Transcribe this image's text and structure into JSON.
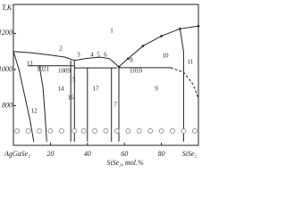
{
  "chart_data": {
    "type": "line",
    "y_label": "T,K",
    "x_label": "SiSe₂, mol.%",
    "xlim": [
      0,
      100
    ],
    "ylim": [
      580,
      1360
    ],
    "xticks": [
      {
        "value": 0,
        "label": "AgGaSe₂"
      },
      20,
      40,
      60,
      80,
      {
        "value": 100,
        "label": "SiSe₂"
      }
    ],
    "yticks": [
      800,
      1000,
      1200
    ],
    "color": "#222222",
    "series": [
      {
        "x": [
          0,
          10,
          20,
          28,
          33
        ],
        "values": [
          1100,
          1092,
          1080,
          1068,
          1050
        ],
        "color": "#222222"
      },
      {
        "x": [
          33,
          40,
          47,
          52,
          57
        ],
        "values": [
          1050,
          1062,
          1068,
          1060,
          1015
        ],
        "color": "#222222"
      },
      {
        "x": [
          57,
          62,
          70,
          80,
          90,
          100
        ],
        "values": [
          1015,
          1060,
          1130,
          1185,
          1225,
          1240
        ],
        "color": "#222222",
        "marker": "dot"
      },
      {
        "x": [
          8,
          33
        ],
        "values": [
          1021,
          1021
        ],
        "color": "#222222"
      },
      {
        "x": [
          33,
          56
        ],
        "values": [
          1009,
          1009
        ],
        "color": "#222222"
      },
      {
        "x": [
          57,
          85
        ],
        "values": [
          1010,
          1010
        ],
        "color": "#222222"
      },
      {
        "x": [
          85,
          92,
          97,
          100
        ],
        "values": [
          1010,
          985,
          920,
          840
        ],
        "color": "#222222",
        "dash": true
      },
      {
        "x": [
          0,
          3,
          6,
          9,
          11
        ],
        "values": [
          1100,
          1000,
          860,
          720,
          600
        ],
        "color": "#222222"
      },
      {
        "x": [
          14,
          16,
          17,
          18
        ],
        "values": [
          1021,
          900,
          760,
          600
        ],
        "color": "#222222"
      },
      {
        "x": [
          31,
          31
        ],
        "values": [
          1050,
          600
        ],
        "color": "#222222"
      },
      {
        "x": [
          33,
          33
        ],
        "values": [
          1050,
          600
        ],
        "color": "#222222"
      },
      {
        "x": [
          40,
          40
        ],
        "values": [
          1009,
          600
        ],
        "color": "#222222"
      },
      {
        "x": [
          53,
          53
        ],
        "values": [
          1009,
          600
        ],
        "color": "#222222"
      },
      {
        "x": [
          57,
          57
        ],
        "values": [
          1015,
          600
        ],
        "color": "#222222"
      },
      {
        "x": [
          90,
          92,
          92,
          92
        ],
        "values": [
          1230,
          1100,
          900,
          600
        ],
        "color": "#222222"
      },
      {
        "x": [
          2,
          8,
          14,
          20,
          26,
          33,
          38,
          44,
          50,
          56,
          62,
          68,
          74,
          80,
          86,
          92,
          98
        ],
        "values": [
          660,
          660,
          660,
          660,
          660,
          660,
          660,
          660,
          660,
          660,
          660,
          660,
          660,
          660,
          660,
          660,
          660
        ],
        "color": "#888888",
        "marker": "circle",
        "line": false
      }
    ],
    "annotations": [
      "1",
      "2",
      "3",
      "4",
      "5",
      "6",
      "7",
      "8",
      "9",
      "10",
      "11",
      "12",
      "13",
      "14",
      "15",
      "16",
      "17",
      "1021",
      "1009",
      "1010"
    ]
  }
}
